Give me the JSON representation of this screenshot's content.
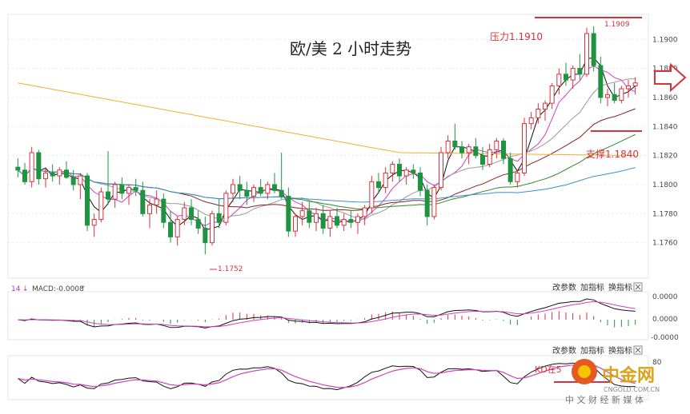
{
  "chart_data": {
    "type": "candlestick",
    "title": "欧/美 2 小时走势",
    "price_axis": {
      "ticks": [
        "1.1900",
        "1.1880",
        "1.1860",
        "1.1840",
        "1.1820",
        "1.1800",
        "1.1780",
        "1.1760"
      ],
      "ylim": [
        1.174,
        1.1915
      ]
    },
    "annotations": {
      "resistance_label": "压力1.1910",
      "resistance_value": 1.191,
      "support_label": "支撑1.1840",
      "support_value": 1.184,
      "high_label": "1.1909",
      "high_value": 1.1909,
      "low_label": "1.1752",
      "low_value": 1.1752
    },
    "candles": [
      [
        1.1812,
        1.1818,
        1.1805,
        1.181
      ],
      [
        1.181,
        1.1815,
        1.18,
        1.1802
      ],
      [
        1.1802,
        1.1826,
        1.1798,
        1.1822
      ],
      [
        1.1822,
        1.1824,
        1.18,
        1.1804
      ],
      [
        1.1804,
        1.1812,
        1.1798,
        1.1808
      ],
      [
        1.1808,
        1.1814,
        1.1802,
        1.1806
      ],
      [
        1.1806,
        1.1812,
        1.18,
        1.181
      ],
      [
        1.181,
        1.1816,
        1.1804,
        1.1805
      ],
      [
        1.1805,
        1.181,
        1.1796,
        1.18
      ],
      [
        1.18,
        1.1808,
        1.179,
        1.1806
      ],
      [
        1.1806,
        1.1808,
        1.1768,
        1.1772
      ],
      [
        1.1772,
        1.178,
        1.1764,
        1.1776
      ],
      [
        1.1776,
        1.1798,
        1.1774,
        1.1795
      ],
      [
        1.1795,
        1.1823,
        1.1786,
        1.179
      ],
      [
        1.179,
        1.1802,
        1.1784,
        1.18
      ],
      [
        1.18,
        1.1805,
        1.179,
        1.1794
      ],
      [
        1.1794,
        1.18,
        1.1786,
        1.1798
      ],
      [
        1.1798,
        1.1804,
        1.1792,
        1.1796
      ],
      [
        1.1796,
        1.1802,
        1.1778,
        1.178
      ],
      [
        1.178,
        1.179,
        1.177,
        1.1786
      ],
      [
        1.1786,
        1.1796,
        1.178,
        1.179
      ],
      [
        1.179,
        1.1794,
        1.177,
        1.1774
      ],
      [
        1.1774,
        1.1782,
        1.176,
        1.1764
      ],
      [
        1.1764,
        1.1778,
        1.1758,
        1.1776
      ],
      [
        1.1776,
        1.1788,
        1.1772,
        1.1784
      ],
      [
        1.1784,
        1.179,
        1.1772,
        1.1776
      ],
      [
        1.1776,
        1.1782,
        1.1766,
        1.177
      ],
      [
        1.177,
        1.1778,
        1.1752,
        1.176
      ],
      [
        1.176,
        1.1782,
        1.1758,
        1.178
      ],
      [
        1.178,
        1.179,
        1.177,
        1.1774
      ],
      [
        1.1774,
        1.1796,
        1.1772,
        1.1794
      ],
      [
        1.1794,
        1.1804,
        1.1788,
        1.18
      ],
      [
        1.18,
        1.1806,
        1.179,
        1.1796
      ],
      [
        1.1796,
        1.1802,
        1.1786,
        1.1792
      ],
      [
        1.1792,
        1.18,
        1.1788,
        1.1798
      ],
      [
        1.1798,
        1.1804,
        1.1792,
        1.1794
      ],
      [
        1.1794,
        1.1802,
        1.179,
        1.18
      ],
      [
        1.18,
        1.1808,
        1.1794,
        1.1796
      ],
      [
        1.1796,
        1.1822,
        1.179,
        1.1792
      ],
      [
        1.1792,
        1.1798,
        1.1764,
        1.1768
      ],
      [
        1.1768,
        1.178,
        1.1764,
        1.1778
      ],
      [
        1.1778,
        1.1788,
        1.1772,
        1.1782
      ],
      [
        1.1782,
        1.1788,
        1.177,
        1.1774
      ],
      [
        1.1774,
        1.1784,
        1.1768,
        1.178
      ],
      [
        1.178,
        1.1786,
        1.1766,
        1.177
      ],
      [
        1.177,
        1.1782,
        1.1764,
        1.1778
      ],
      [
        1.1778,
        1.1784,
        1.177,
        1.1772
      ],
      [
        1.1772,
        1.178,
        1.1768,
        1.1776
      ],
      [
        1.1776,
        1.1782,
        1.177,
        1.1774
      ],
      [
        1.1774,
        1.178,
        1.1766,
        1.1778
      ],
      [
        1.1778,
        1.1786,
        1.1772,
        1.1784
      ],
      [
        1.1784,
        1.1806,
        1.178,
        1.1802
      ],
      [
        1.1802,
        1.1808,
        1.1794,
        1.1798
      ],
      [
        1.1798,
        1.1812,
        1.1794,
        1.1808
      ],
      [
        1.1808,
        1.1816,
        1.1802,
        1.1814
      ],
      [
        1.1814,
        1.1818,
        1.1802,
        1.1806
      ],
      [
        1.1806,
        1.1812,
        1.18,
        1.181
      ],
      [
        1.181,
        1.1814,
        1.1804,
        1.1808
      ],
      [
        1.1808,
        1.1812,
        1.1792,
        1.1796
      ],
      [
        1.1796,
        1.18,
        1.1772,
        1.1778
      ],
      [
        1.1778,
        1.18,
        1.1776,
        1.1798
      ],
      [
        1.1798,
        1.1826,
        1.1796,
        1.1822
      ],
      [
        1.1822,
        1.1834,
        1.1818,
        1.183
      ],
      [
        1.183,
        1.1842,
        1.1824,
        1.1826
      ],
      [
        1.1826,
        1.183,
        1.1818,
        1.1822
      ],
      [
        1.1822,
        1.1828,
        1.1814,
        1.1826
      ],
      [
        1.1826,
        1.1832,
        1.1818,
        1.182
      ],
      [
        1.182,
        1.1826,
        1.181,
        1.1814
      ],
      [
        1.1814,
        1.1828,
        1.1812,
        1.1824
      ],
      [
        1.1824,
        1.1832,
        1.1818,
        1.183
      ],
      [
        1.183,
        1.1832,
        1.1814,
        1.1818
      ],
      [
        1.1818,
        1.1822,
        1.18,
        1.1802
      ],
      [
        1.1802,
        1.181,
        1.1798,
        1.1808
      ],
      [
        1.1808,
        1.1846,
        1.1806,
        1.1842
      ],
      [
        1.1842,
        1.185,
        1.1838,
        1.1846
      ],
      [
        1.1846,
        1.1856,
        1.1842,
        1.1852
      ],
      [
        1.1852,
        1.1858,
        1.1844,
        1.1856
      ],
      [
        1.1856,
        1.187,
        1.1852,
        1.1868
      ],
      [
        1.1868,
        1.188,
        1.1862,
        1.1876
      ],
      [
        1.1876,
        1.1884,
        1.1868,
        1.1872
      ],
      [
        1.1872,
        1.1882,
        1.1866,
        1.188
      ],
      [
        1.188,
        1.189,
        1.1872,
        1.1876
      ],
      [
        1.1876,
        1.1908,
        1.1874,
        1.1904
      ],
      [
        1.1904,
        1.1909,
        1.1878,
        1.1882
      ],
      [
        1.1882,
        1.1888,
        1.1856,
        1.186
      ],
      [
        1.186,
        1.1866,
        1.1854,
        1.1862
      ],
      [
        1.1862,
        1.187,
        1.1856,
        1.1858
      ],
      [
        1.1858,
        1.1868,
        1.1856,
        1.1866
      ],
      [
        1.1866,
        1.1872,
        1.186,
        1.1868
      ],
      [
        1.1868,
        1.1874,
        1.1862,
        1.187
      ]
    ],
    "macd_panel": {
      "period_label": "14",
      "label": "MACD:-0.0008",
      "buttons": [
        "改参数",
        "加指标",
        "换指标"
      ],
      "ticks": [
        "0.0000",
        "0.0000",
        "-0.0000"
      ]
    },
    "kd_panel": {
      "buttons": [
        "改参数",
        "加指标",
        "换指标"
      ],
      "tick": "80",
      "note": "KD在5"
    },
    "colors": {
      "up": "#d8323c",
      "down": "#1e9440",
      "resistance": "#d8323c",
      "support": "#d8323c"
    }
  },
  "watermark": {
    "brand": "中金网",
    "url": "CNGOLD.COM.CN",
    "tagline": "中 文 财 经 新 媒 体"
  }
}
